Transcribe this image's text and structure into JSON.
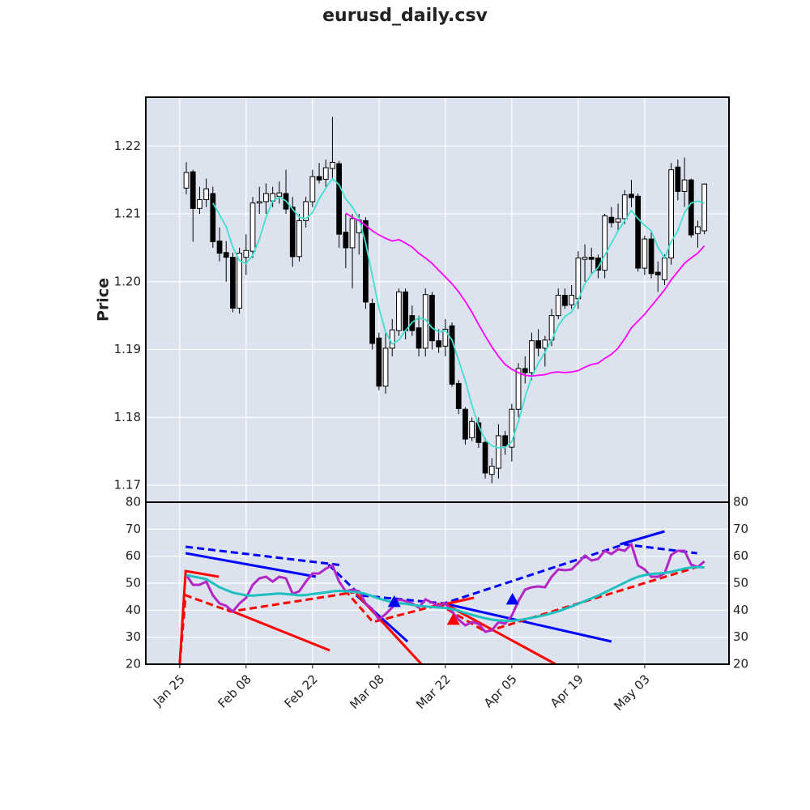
{
  "chart_data": [
    {
      "type": "candlestick",
      "title": "eurusd_daily.csv",
      "ylabel": "Price",
      "x": [
        1,
        2,
        3,
        4,
        5,
        6,
        7,
        8,
        9,
        10,
        11,
        12,
        13,
        14,
        15,
        16,
        17,
        18,
        19,
        20,
        21,
        22,
        23,
        24,
        25,
        26,
        27,
        28,
        29,
        30,
        31,
        32,
        33,
        34,
        35,
        36,
        37,
        38,
        39,
        40,
        41,
        42,
        43,
        44,
        45,
        46,
        47,
        48,
        49,
        50,
        51,
        52,
        53,
        54,
        55,
        56,
        57,
        58,
        59,
        60,
        61,
        62,
        63,
        64,
        65,
        66,
        67,
        68,
        69,
        70,
        71,
        72,
        73,
        74,
        75,
        76,
        77,
        78,
        79
      ],
      "open": [
        1.2138,
        1.2162,
        1.2108,
        1.2121,
        1.213,
        1.206,
        1.2043,
        1.2036,
        1.1961,
        1.2036,
        1.2045,
        1.2116,
        1.2118,
        1.2119,
        1.2126,
        1.213,
        1.211,
        1.2037,
        1.209,
        1.2118,
        1.2155,
        1.2151,
        1.2167,
        1.2174,
        1.2073,
        1.205,
        1.2072,
        1.209,
        1.1968,
        1.1917,
        1.1846,
        1.1902,
        1.1928,
        1.1985,
        1.195,
        1.1932,
        1.1902,
        1.198,
        1.1913,
        1.1905,
        1.1935,
        1.185,
        1.1812,
        1.177,
        1.1792,
        1.1763,
        1.1716,
        1.1725,
        1.1773,
        1.1756,
        1.1812,
        1.1872,
        1.1866,
        1.1913,
        1.1902,
        1.1914,
        1.195,
        1.198,
        1.1966,
        1.1975,
        1.2033,
        1.2036,
        1.2035,
        1.2017,
        1.2095,
        1.2088,
        1.2093,
        1.2129,
        1.2126,
        1.202,
        1.2063,
        1.2014,
        1.2003,
        1.2035,
        1.2169,
        1.2133,
        1.215,
        1.2071,
        1.2075
      ],
      "high": [
        1.2176,
        1.2165,
        1.214,
        1.2152,
        1.214,
        1.208,
        1.206,
        1.2043,
        1.205,
        1.207,
        1.2125,
        1.214,
        1.2145,
        1.214,
        1.2148,
        1.2165,
        1.2125,
        1.21,
        1.2125,
        1.2165,
        1.2175,
        1.218,
        1.2243,
        1.2178,
        1.21,
        1.21,
        1.21,
        1.2095,
        1.1975,
        1.1925,
        1.1925,
        1.1945,
        1.199,
        1.199,
        1.1965,
        1.195,
        1.199,
        1.1985,
        1.193,
        1.1945,
        1.194,
        1.1855,
        1.1815,
        1.18,
        1.18,
        1.177,
        1.174,
        1.179,
        1.178,
        1.182,
        1.188,
        1.189,
        1.1925,
        1.193,
        1.192,
        1.196,
        1.199,
        1.199,
        1.1995,
        1.2045,
        1.2055,
        1.205,
        1.204,
        1.21,
        1.211,
        1.2115,
        1.2135,
        1.215,
        1.213,
        1.2068,
        1.2075,
        1.203,
        1.204,
        1.2175,
        1.218,
        1.2183,
        1.2152,
        1.209,
        1.2145
      ],
      "low": [
        1.2129,
        1.2059,
        1.21,
        1.211,
        1.205,
        1.203,
        1.2,
        1.1955,
        1.1953,
        1.201,
        1.2035,
        1.21,
        1.21,
        1.211,
        1.2115,
        1.21,
        1.2022,
        1.203,
        1.208,
        1.211,
        1.2145,
        1.214,
        1.215,
        1.205,
        1.202,
        1.199,
        1.204,
        1.196,
        1.19,
        1.184,
        1.1835,
        1.189,
        1.192,
        1.1915,
        1.192,
        1.189,
        1.189,
        1.19,
        1.1895,
        1.189,
        1.1845,
        1.1805,
        1.176,
        1.1765,
        1.1755,
        1.171,
        1.1703,
        1.171,
        1.1745,
        1.1735,
        1.18,
        1.185,
        1.1855,
        1.189,
        1.1875,
        1.1905,
        1.1945,
        1.196,
        1.196,
        1.196,
        1.2,
        1.201,
        1.2005,
        1.2005,
        1.208,
        1.2075,
        1.2085,
        1.211,
        1.2015,
        1.201,
        1.2005,
        1.1985,
        1.1995,
        1.2025,
        1.212,
        1.211,
        1.2065,
        1.205,
        1.207
      ],
      "close": [
        1.2161,
        1.2108,
        1.2121,
        1.2137,
        1.2059,
        1.2042,
        1.2036,
        1.1961,
        1.2042,
        1.2046,
        1.2116,
        1.2118,
        1.213,
        1.213,
        1.2131,
        1.2107,
        1.2037,
        1.209,
        1.2118,
        1.2155,
        1.215,
        1.2168,
        1.2176,
        1.207,
        1.205,
        1.2093,
        1.2091,
        1.197,
        1.1909,
        1.1846,
        1.1902,
        1.1929,
        1.1985,
        1.1928,
        1.1928,
        1.1902,
        1.1981,
        1.1913,
        1.1904,
        1.193,
        1.1849,
        1.1813,
        1.1768,
        1.1794,
        1.1763,
        1.1718,
        1.1728,
        1.1773,
        1.1758,
        1.1812,
        1.1872,
        1.1866,
        1.1913,
        1.1902,
        1.1914,
        1.195,
        1.198,
        1.1965,
        1.198,
        1.2035,
        1.2036,
        1.2033,
        1.2017,
        1.2097,
        1.2087,
        1.2093,
        1.2128,
        1.2124,
        1.202,
        1.2063,
        1.2012,
        1.201,
        1.2035,
        1.2165,
        1.2133,
        1.215,
        1.2069,
        1.2081,
        1.2144
      ],
      "up_color": "#ffffff",
      "down_color": "#000000",
      "series": [
        {
          "color": "#40e0d0",
          "values": [
            null,
            null,
            null,
            null,
            1.2116,
            1.2099,
            1.2081,
            1.2051,
            1.2031,
            1.2027,
            1.2039,
            1.2063,
            1.2095,
            1.2119,
            1.2125,
            1.2119,
            1.2107,
            1.2095,
            1.2093,
            1.2102,
            1.2122,
            1.2138,
            1.2152,
            1.2143,
            1.2122,
            1.211,
            1.2093,
            1.2057,
            1.2009,
            1.1961,
            1.1926,
            1.1908,
            1.1914,
            1.1928,
            1.194,
            1.1947,
            1.1944,
            1.1932,
            1.1926,
            1.1928,
            1.1914,
            1.1884,
            1.1854,
            1.1818,
            1.1788,
            1.1767,
            1.1758,
            1.1755,
            1.1756,
            1.1764,
            1.1794,
            1.183,
            1.186,
            1.188,
            1.1896,
            1.1914,
            1.1935,
            1.1949,
            1.1955,
            1.1973,
            1.1997,
            1.2011,
            1.2021,
            1.2039,
            1.2057,
            1.2075,
            1.209,
            1.2105,
            1.2093,
            1.2083,
            1.2075,
            1.2051,
            1.2035,
            1.2059,
            1.2075,
            1.2102,
            1.2116,
            1.2119,
            1.2116
          ]
        },
        {
          "color": "#ff00ff",
          "values": [
            null,
            null,
            null,
            null,
            null,
            null,
            null,
            null,
            null,
            null,
            null,
            null,
            null,
            null,
            null,
            null,
            null,
            null,
            null,
            null,
            null,
            null,
            null,
            null,
            1.2101,
            1.2095,
            1.209,
            1.2083,
            1.2075,
            1.2069,
            1.2064,
            1.206,
            1.2062,
            1.2057,
            1.2051,
            1.2042,
            1.2035,
            1.2027,
            1.2017,
            1.2007,
            1.1997,
            1.1985,
            1.1971,
            1.1955,
            1.1937,
            1.192,
            1.1904,
            1.189,
            1.1878,
            1.1871,
            1.1866,
            1.1862,
            1.1861,
            1.1862,
            1.1863,
            1.1866,
            1.1867,
            1.1866,
            1.1867,
            1.1869,
            1.1874,
            1.1878,
            1.188,
            1.1887,
            1.1893,
            1.1902,
            1.1916,
            1.1932,
            1.1942,
            1.1952,
            1.1964,
            1.1976,
            1.1988,
            1.2003,
            1.2015,
            1.2027,
            1.2035,
            1.2042,
            1.2053
          ]
        }
      ],
      "xlim": [
        -5.1,
        82.7
      ],
      "xticks": [
        0,
        10,
        20,
        30,
        40,
        50,
        60,
        70
      ],
      "ylim": [
        1.1675,
        1.2272
      ],
      "yticks": [
        1.17,
        1.18,
        1.19,
        {
          "value": 1.2,
          "label": "1.20"
        },
        1.21,
        1.22
      ],
      "grid": true
    },
    {
      "type": "line",
      "series": [
        {
          "color": "#b326c6",
          "values": [
            53,
            49.4,
            49.4,
            50.6,
            45.5,
            42.5,
            41.6,
            39.5,
            42.5,
            44.6,
            49.4,
            51.8,
            52.4,
            50.6,
            52.4,
            51.8,
            46.1,
            47,
            50.6,
            53.6,
            53.6,
            55.4,
            56.6,
            50.6,
            47,
            47.6,
            47,
            42.5,
            40.4,
            36.5,
            38.6,
            41,
            44,
            43.4,
            42.5,
            41,
            44,
            42.8,
            41.6,
            42.5,
            39.5,
            36.5,
            34.4,
            35.6,
            35,
            32,
            32.6,
            35.6,
            35,
            38,
            43.4,
            47.6,
            48.5,
            48.8,
            48.5,
            52.4,
            55.1,
            54.8,
            55.1,
            57.5,
            60.2,
            58.4,
            59,
            62,
            60.8,
            62.6,
            62,
            64.4,
            56.6,
            55.1,
            52.4,
            52.4,
            53.6,
            60.5,
            62,
            62,
            56.9,
            56,
            58.1
          ]
        },
        {
          "color": "#1fbfbf",
          "values": [
            53,
            52.5,
            52,
            51.5,
            50,
            48.5,
            47.5,
            46.5,
            46,
            45.5,
            45.4,
            45.6,
            45.8,
            46,
            46.2,
            46,
            45.8,
            45.5,
            45.6,
            46,
            46.3,
            46.6,
            47,
            47.2,
            47,
            46.8,
            46.6,
            46,
            45.2,
            44.3,
            43.6,
            43,
            42.6,
            42.4,
            42,
            41.6,
            41.4,
            41.2,
            41,
            40.8,
            40.4,
            39.8,
            39,
            38.3,
            37.6,
            37,
            36.5,
            36.2,
            36.1,
            36.1,
            36.3,
            36.7,
            37.2,
            37.7,
            38.2,
            38.9,
            39.6,
            40.5,
            41.4,
            42.4,
            43.4,
            44.4,
            45.4,
            46.6,
            47.8,
            49,
            50.2,
            51.4,
            52.4,
            53,
            53.4,
            53.6,
            53.8,
            54.2,
            54.8,
            55.4,
            55.8,
            56,
            55.8
          ]
        }
      ],
      "trendlines": [
        {
          "color": "#0000ff",
          "style": "solid",
          "x": [
            0.9,
            20.5
          ],
          "values": [
            61.1,
            52.4
          ]
        },
        {
          "color": "#0000ff",
          "style": "solid",
          "x": [
            26.6,
            34.3
          ],
          "values": [
            45.5,
            28.4
          ]
        },
        {
          "color": "#0000ff",
          "style": "solid",
          "x": [
            39.8,
            65
          ],
          "values": [
            42.5,
            28.4
          ]
        },
        {
          "color": "#0000ff",
          "style": "solid",
          "x": [
            66.3,
            73
          ],
          "values": [
            64.4,
            69.2
          ]
        },
        {
          "color": "#0000ff",
          "style": "dashed",
          "x": [
            0.9,
            24.6
          ],
          "values": [
            63.5,
            56.6
          ]
        },
        {
          "color": "#0000ff",
          "style": "dashed",
          "x": [
            22.4,
            27.2,
            39.8,
            66.9,
            77.9
          ],
          "values": [
            56.9,
            45.5,
            42.5,
            64.4,
            61.1
          ]
        },
        {
          "color": "#ff0000",
          "style": "solid",
          "x": [
            0,
            0.9,
            5.9
          ],
          "values": [
            20,
            54.5,
            52.4
          ]
        },
        {
          "color": "#ff0000",
          "style": "solid",
          "x": [
            7.1,
            22.6
          ],
          "values": [
            40.4,
            25.1
          ]
        },
        {
          "color": "#ff0000",
          "style": "solid",
          "x": [
            26.6,
            36.4
          ],
          "values": [
            46.1,
            20
          ]
        },
        {
          "color": "#ff0000",
          "style": "solid",
          "x": [
            37.6,
            44.3
          ],
          "values": [
            41,
            44.6
          ]
        },
        {
          "color": "#ff0000",
          "style": "solid",
          "x": [
            39.8,
            56.6
          ],
          "values": [
            42.5,
            20
          ]
        },
        {
          "color": "#ff0000",
          "style": "dashed",
          "x": [
            0,
            0.9,
            7.7,
            27.2
          ],
          "values": [
            20,
            45.5,
            39.5,
            47
          ]
        },
        {
          "color": "#ff0000",
          "style": "dashed",
          "x": [
            24.8,
            29.1,
            39.8
          ],
          "values": [
            47.6,
            35.6,
            42.5
          ]
        },
        {
          "color": "#ff0000",
          "style": "dashed",
          "x": [
            38.8,
            46.1,
            77.9
          ],
          "values": [
            42.5,
            32,
            56
          ]
        }
      ],
      "markers": [
        {
          "color": "#0000ff",
          "shape": "triangle-up",
          "x": [
            32.3,
            50.1
          ],
          "values": [
            43.1,
            44
          ]
        },
        {
          "color": "#ff0000",
          "shape": "triangle-up",
          "x": [
            41.2
          ],
          "values": [
            36.5
          ]
        }
      ],
      "xlim": [
        -5.1,
        82.7
      ],
      "xticks": [
        {
          "value": 0,
          "label": "Jan 25"
        },
        {
          "value": 10,
          "label": "Feb 08"
        },
        {
          "value": 20,
          "label": "Feb 22"
        },
        {
          "value": 30,
          "label": "Mar 08"
        },
        {
          "value": 40,
          "label": "Mar 22"
        },
        {
          "value": 50,
          "label": "Apr 05"
        },
        {
          "value": 60,
          "label": "Apr 19"
        },
        {
          "value": 70,
          "label": "May 03"
        }
      ],
      "ylim": [
        20,
        80
      ],
      "yticks": [
        20,
        30,
        40,
        50,
        60,
        70,
        80
      ],
      "y2lim": [
        20,
        80
      ],
      "y2ticks": [
        20,
        30,
        40,
        50,
        60,
        70,
        80
      ],
      "grid": true
    }
  ]
}
